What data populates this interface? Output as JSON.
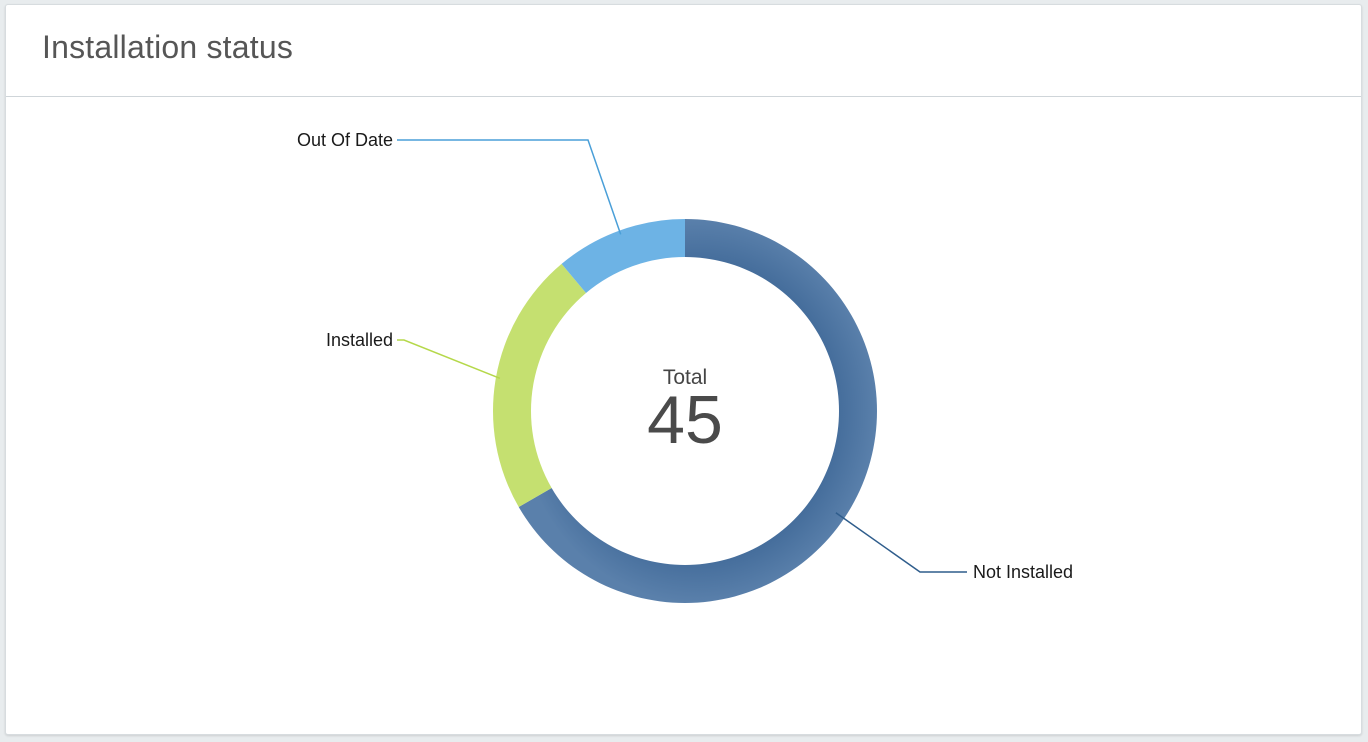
{
  "card": {
    "title": "Installation status"
  },
  "chart_data": {
    "type": "pie",
    "donut": true,
    "center_label": "Total",
    "center_value": "45",
    "total": 45,
    "slices": [
      {
        "name": "Not Installed",
        "value": 30,
        "color": "#4a72a0"
      },
      {
        "name": "Installed",
        "value": 10,
        "color": "#c5e070"
      },
      {
        "name": "Out Of Date",
        "value": 5,
        "color": "#6db3e5"
      }
    ],
    "label_line_colors": {
      "Not Installed": "#2f5d8c",
      "Installed": "#b5d84a",
      "Out Of Date": "#4a9fd8"
    }
  }
}
